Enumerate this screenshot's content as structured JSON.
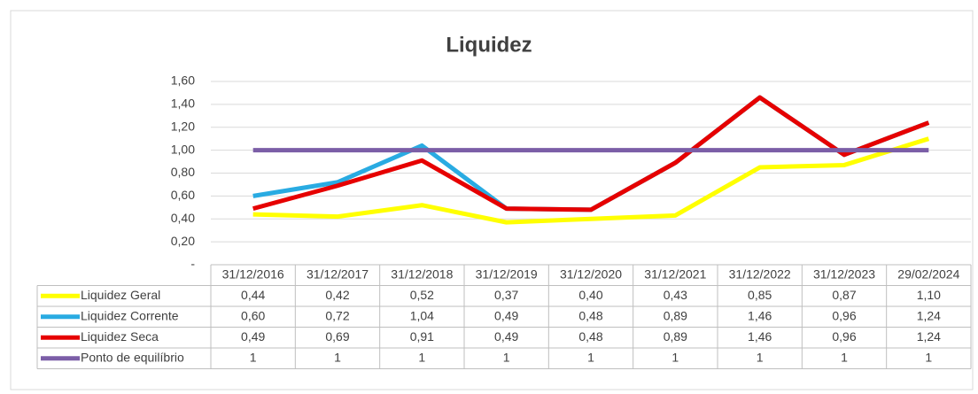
{
  "chart_data": {
    "type": "line",
    "title": "Liquidez",
    "categories": [
      "31/12/2016",
      "31/12/2017",
      "31/12/2018",
      "31/12/2019",
      "31/12/2020",
      "31/12/2021",
      "31/12/2022",
      "31/12/2023",
      "29/02/2024"
    ],
    "series": [
      {
        "name": "Liquidez Geral",
        "color": "#ffff00",
        "values": [
          0.44,
          0.42,
          0.52,
          0.37,
          0.4,
          0.43,
          0.85,
          0.87,
          1.1
        ],
        "value_labels": [
          "0,44",
          "0,42",
          "0,52",
          "0,37",
          "0,40",
          "0,43",
          "0,85",
          "0,87",
          "1,10"
        ]
      },
      {
        "name": "Liquidez Corrente",
        "color": "#29abe2",
        "values": [
          0.6,
          0.72,
          1.04,
          0.49,
          0.48,
          0.89,
          1.46,
          0.96,
          1.24
        ],
        "value_labels": [
          "0,60",
          "0,72",
          "1,04",
          "0,49",
          "0,48",
          "0,89",
          "1,46",
          "0,96",
          "1,24"
        ]
      },
      {
        "name": "Liquidez Seca",
        "color": "#e60000",
        "values": [
          0.49,
          0.69,
          0.91,
          0.49,
          0.48,
          0.89,
          1.46,
          0.96,
          1.24
        ],
        "value_labels": [
          "0,49",
          "0,69",
          "0,91",
          "0,49",
          "0,48",
          "0,89",
          "1,46",
          "0,96",
          "1,24"
        ]
      },
      {
        "name": "Ponto de equilíbrio",
        "color": "#7b5ea7",
        "values": [
          1,
          1,
          1,
          1,
          1,
          1,
          1,
          1,
          1
        ]
      }
    ],
    "ylim": [
      0,
      1.6
    ],
    "yticks": [
      {
        "value": 0,
        "label": "-"
      },
      {
        "value": 0.2,
        "label": "0,20"
      },
      {
        "value": 0.4,
        "label": "0,40"
      },
      {
        "value": 0.6,
        "label": "0,60"
      },
      {
        "value": 0.8,
        "label": "0,80"
      },
      {
        "value": 1.0,
        "label": "1,00"
      },
      {
        "value": 1.2,
        "label": "1,20"
      },
      {
        "value": 1.4,
        "label": "1,40"
      },
      {
        "value": 1.6,
        "label": "1,60"
      }
    ],
    "grid": true
  }
}
